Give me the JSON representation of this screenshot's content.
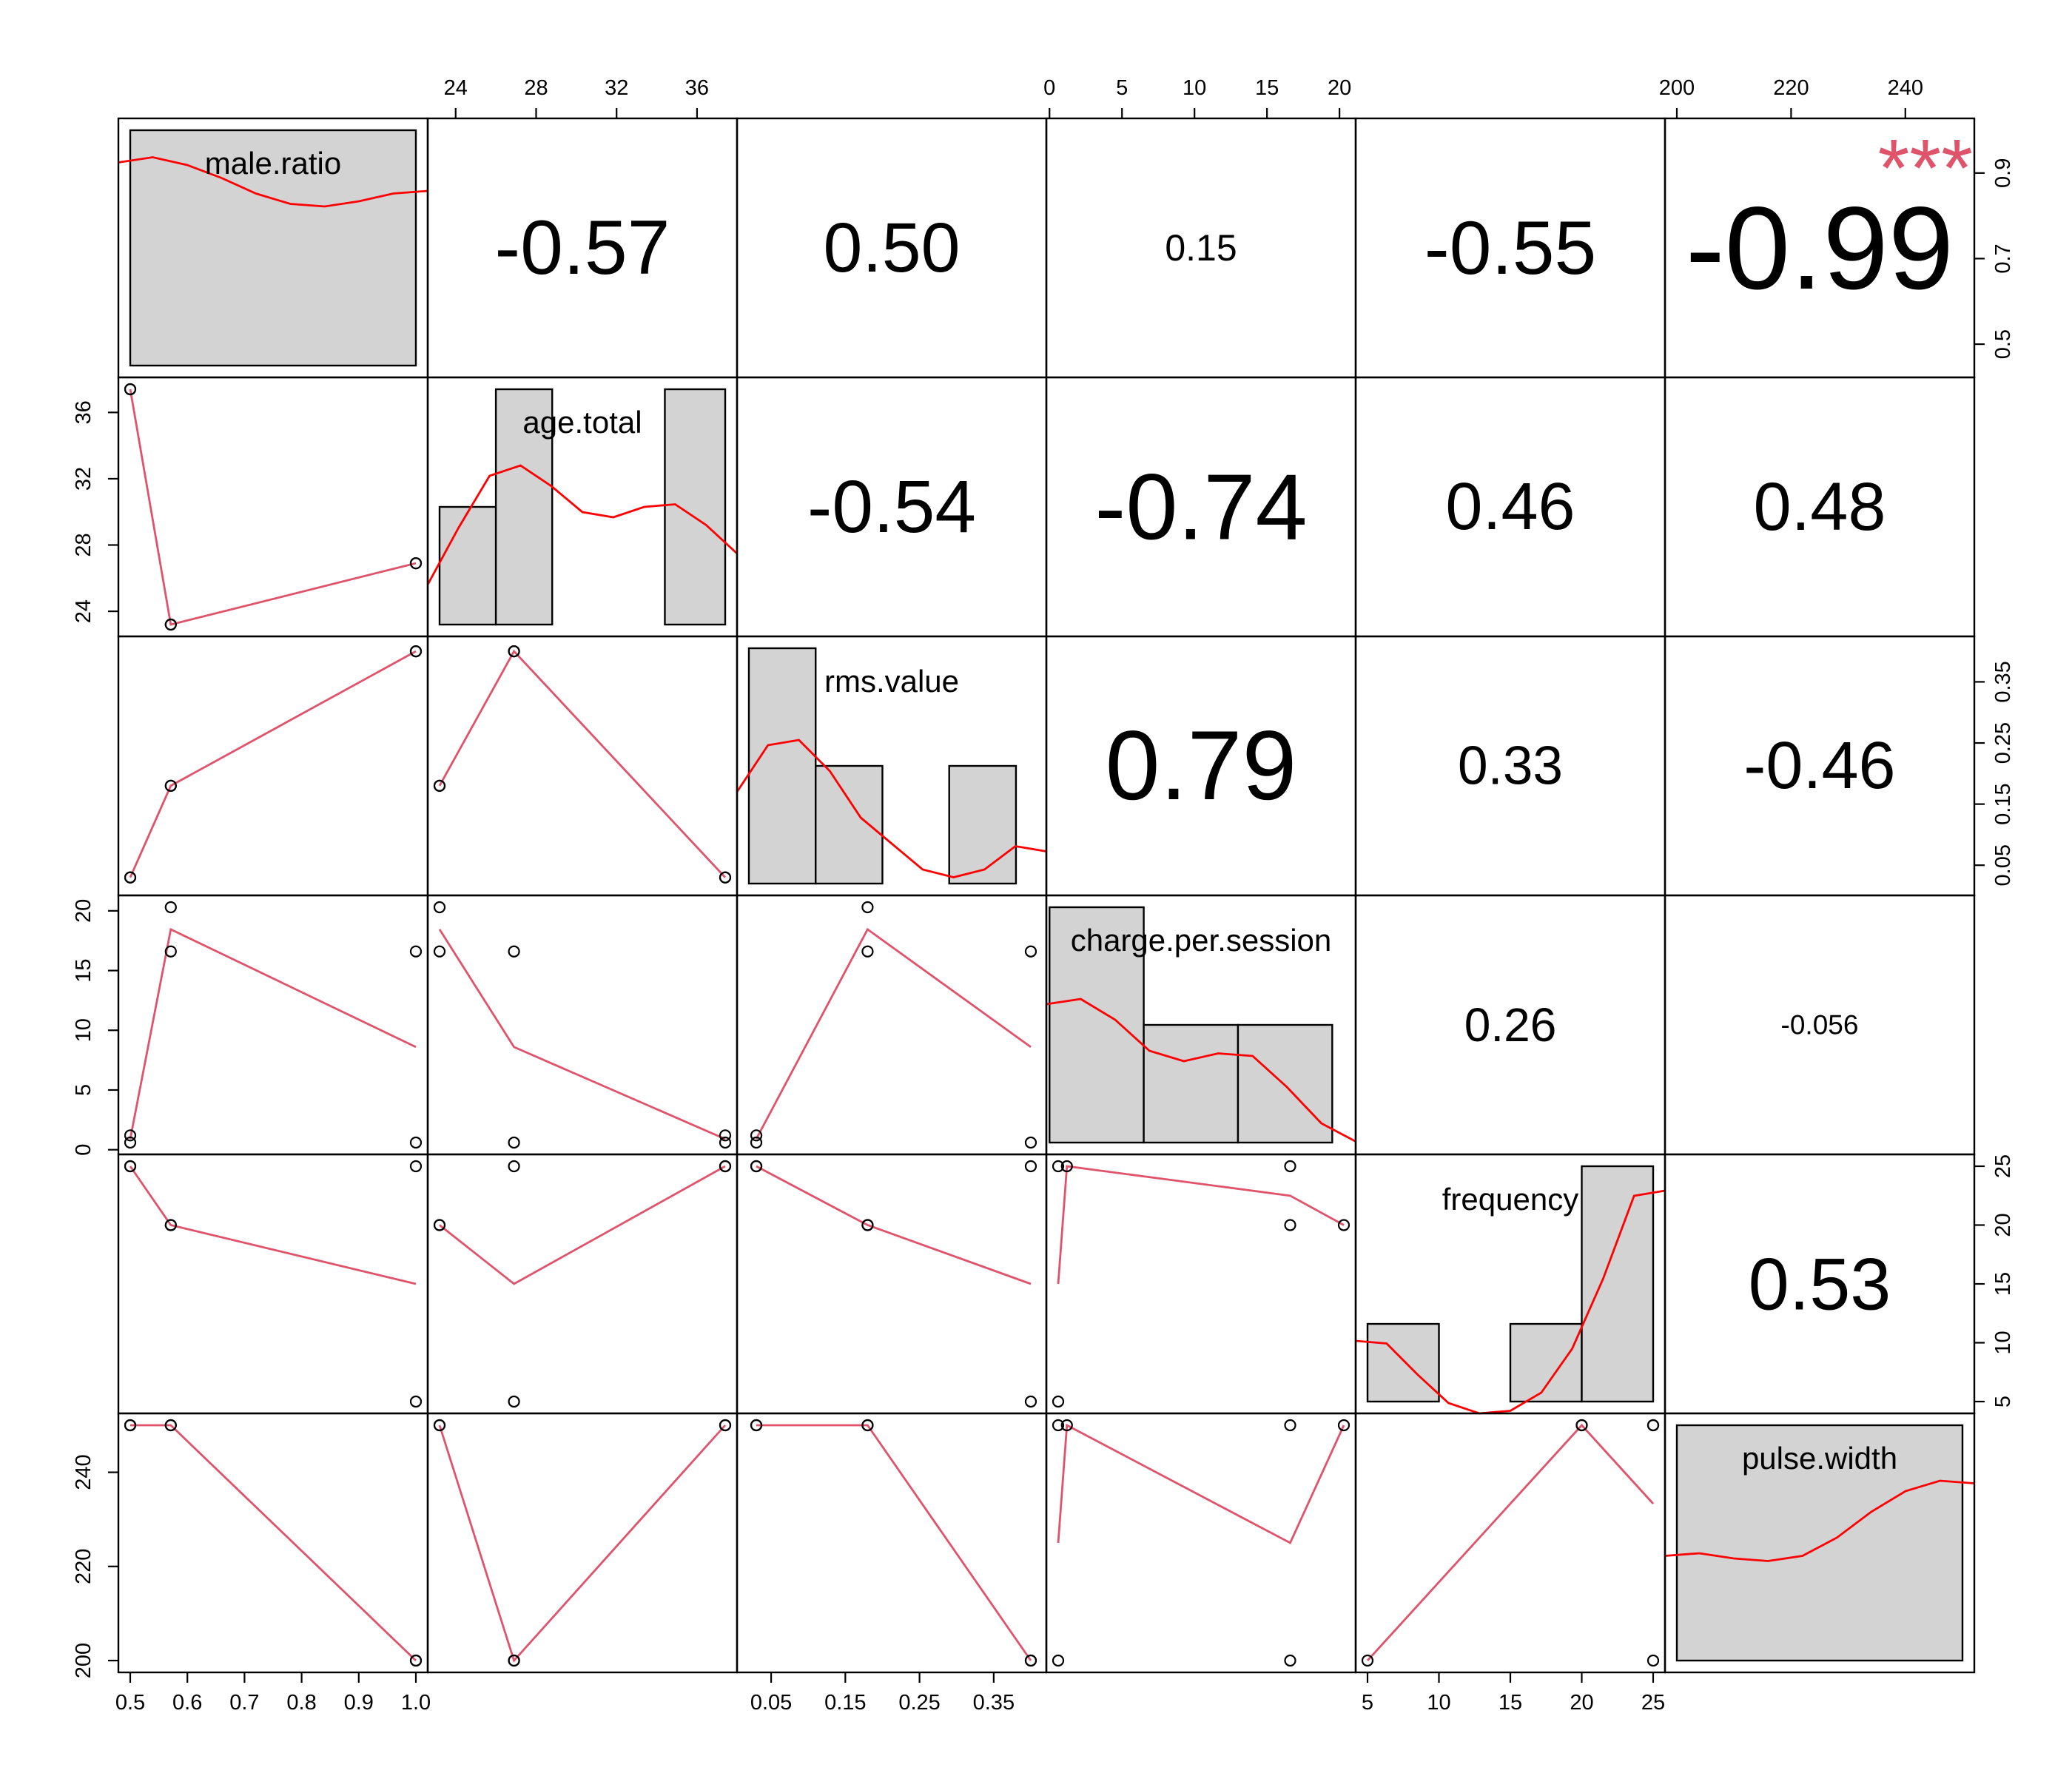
{
  "chart_data": {
    "type": "scatter-matrix",
    "variables": [
      "male.ratio",
      "age.total",
      "rms.value",
      "charge.per.session",
      "frequency",
      "pulse.width"
    ],
    "observations": {
      "male.ratio": [
        0.5,
        0.571,
        0.5,
        0.571,
        1.0,
        1.0
      ],
      "age.total": [
        37.4,
        23.2,
        37.4,
        23.2,
        26.9,
        26.9
      ],
      "rms.value": [
        0.03,
        0.18,
        0.03,
        0.18,
        0.4,
        0.4
      ],
      "charge.per.session": [
        1.2,
        20.3,
        0.6,
        16.6,
        0.6,
        16.6
      ],
      "frequency": [
        25,
        20,
        25,
        20,
        5,
        25
      ],
      "pulse.width": [
        250,
        250,
        250,
        250,
        200,
        200
      ]
    },
    "axis_ranges": {
      "male.ratio": [
        0.5,
        1.0
      ],
      "age.total": [
        23.2,
        37.4
      ],
      "rms.value": [
        0.02,
        0.405
      ],
      "charge.per.session": [
        0.6,
        20.3
      ],
      "frequency": [
        5,
        25
      ],
      "pulse.width": [
        200,
        250
      ]
    },
    "ticks": {
      "male.ratio": [
        "0.5",
        "0.6",
        "0.7",
        "0.8",
        "0.9",
        "1.0"
      ],
      "male.ratio.right": [
        "0.5",
        "0.7",
        "0.9"
      ],
      "age.total": [
        "24",
        "28",
        "32",
        "36"
      ],
      "rms.value": [
        "0.05",
        "0.15",
        "0.25",
        "0.35"
      ],
      "rms.value.right": [
        "0.05",
        "0.15",
        "0.25",
        "0.35"
      ],
      "charge.per.session": [
        "0",
        "5",
        "10",
        "15",
        "20"
      ],
      "frequency": [
        "5",
        "10",
        "15",
        "20",
        "25"
      ],
      "pulse.width": [
        "200",
        "220",
        "240"
      ]
    },
    "histograms": {
      "male.ratio": {
        "bins": [
          [
            0.5,
            1.0
          ]
        ],
        "heights": [
          1.0
        ]
      },
      "age.total": {
        "bins": [
          [
            23.2,
            26.0
          ],
          [
            26.0,
            28.8
          ],
          [
            28.8,
            31.6
          ],
          [
            31.6,
            34.4
          ],
          [
            34.4,
            37.4
          ]
        ],
        "heights": [
          0.5,
          1.0,
          0.0,
          0.0,
          1.0
        ]
      },
      "rms.value": {
        "bins": [
          [
            0.02,
            0.11
          ],
          [
            0.11,
            0.2
          ],
          [
            0.2,
            0.29
          ],
          [
            0.29,
            0.38
          ]
        ],
        "heights": [
          1.0,
          0.5,
          0.0,
          0.5
        ]
      },
      "charge.per.session": {
        "bins": [
          [
            0.0,
            6.5
          ],
          [
            6.5,
            13.0
          ],
          [
            13.0,
            19.5
          ]
        ],
        "heights": [
          1.0,
          0.5,
          0.5
        ]
      },
      "frequency": {
        "bins": [
          [
            5,
            10
          ],
          [
            10,
            15
          ],
          [
            15,
            20
          ],
          [
            20,
            25
          ]
        ],
        "heights": [
          0.33,
          0.0,
          0.33,
          1.0
        ]
      },
      "pulse.width": {
        "bins": [
          [
            200,
            250
          ]
        ],
        "heights": [
          1.0
        ]
      }
    },
    "densities": {
      "male.ratio": [
        0.83,
        0.85,
        0.82,
        0.77,
        0.71,
        0.67,
        0.66,
        0.68,
        0.71,
        0.72
      ],
      "age.total": [
        0.2,
        0.42,
        0.62,
        0.66,
        0.58,
        0.48,
        0.46,
        0.5,
        0.51,
        0.43,
        0.32
      ],
      "rms.value": [
        0.4,
        0.58,
        0.6,
        0.48,
        0.3,
        0.2,
        0.1,
        0.07,
        0.1,
        0.19,
        0.17
      ],
      "charge.per.session": [
        0.58,
        0.6,
        0.52,
        0.4,
        0.36,
        0.39,
        0.38,
        0.26,
        0.12,
        0.05
      ],
      "frequency": [
        0.28,
        0.27,
        0.15,
        0.04,
        0.0,
        0.01,
        0.08,
        0.25,
        0.52,
        0.84,
        0.86
      ],
      "pulse.width": [
        0.45,
        0.46,
        0.44,
        0.43,
        0.45,
        0.52,
        0.62,
        0.7,
        0.74,
        0.73
      ]
    },
    "correlations": [
      {
        "row": 0,
        "col": 1,
        "label": "-0.57",
        "value": -0.57,
        "stars": ""
      },
      {
        "row": 0,
        "col": 2,
        "label": "0.50",
        "value": 0.5,
        "stars": ""
      },
      {
        "row": 0,
        "col": 3,
        "label": "0.15",
        "value": 0.15,
        "stars": ""
      },
      {
        "row": 0,
        "col": 4,
        "label": "-0.55",
        "value": -0.55,
        "stars": ""
      },
      {
        "row": 0,
        "col": 5,
        "label": "-0.99",
        "value": -0.99,
        "stars": "***"
      },
      {
        "row": 1,
        "col": 2,
        "label": "-0.54",
        "value": -0.54,
        "stars": ""
      },
      {
        "row": 1,
        "col": 3,
        "label": "-0.74",
        "value": -0.74,
        "stars": ""
      },
      {
        "row": 1,
        "col": 4,
        "label": "0.46",
        "value": 0.46,
        "stars": ""
      },
      {
        "row": 1,
        "col": 5,
        "label": "0.48",
        "value": 0.48,
        "stars": ""
      },
      {
        "row": 2,
        "col": 3,
        "label": "0.79",
        "value": 0.79,
        "stars": ""
      },
      {
        "row": 2,
        "col": 4,
        "label": "0.33",
        "value": 0.33,
        "stars": ""
      },
      {
        "row": 2,
        "col": 5,
        "label": "-0.46",
        "value": -0.46,
        "stars": ""
      },
      {
        "row": 3,
        "col": 4,
        "label": "0.26",
        "value": 0.26,
        "stars": ""
      },
      {
        "row": 3,
        "col": 5,
        "label": "-0.056",
        "value": -0.056,
        "stars": ""
      },
      {
        "row": 4,
        "col": 5,
        "label": "0.53",
        "value": 0.53,
        "stars": ""
      }
    ],
    "colors": {
      "histogram_fill": "#d3d3d3",
      "density": "#ff0000",
      "smoother": "#df536b",
      "stars": "#df536b",
      "points": "#000000"
    }
  }
}
